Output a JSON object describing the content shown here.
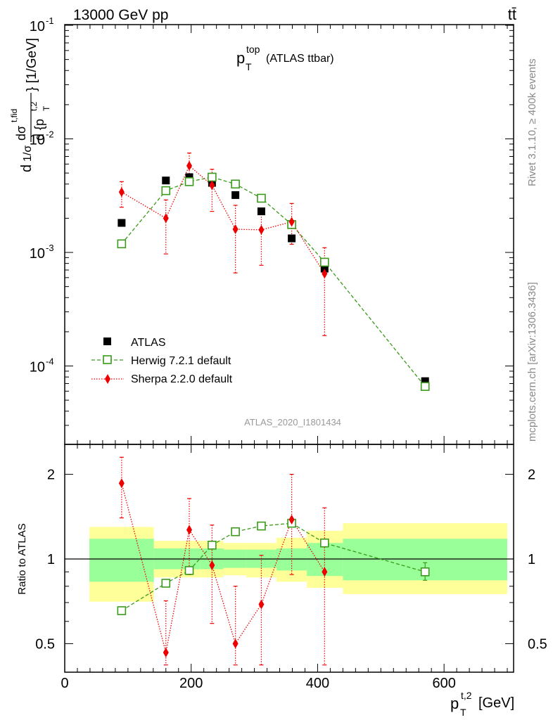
{
  "header": {
    "process": "13000 GeV pp",
    "ttbar_label": "tt̄",
    "observable_main": "p",
    "observable_sub": "T",
    "observable_sup": "top",
    "observable_tag": "(ATLAS ttbar)",
    "analysis_id": "ATLAS_2020_I1801434",
    "rivet_note": "Rivet 3.1.10, ≥ 400k events",
    "site_note": "mcplots.cern.ch [arXiv:1306.3436]"
  },
  "chart_data": [
    {
      "panel": "main",
      "type": "scatter",
      "scale": "log",
      "ylim": [
        2e-05,
        0.1
      ],
      "xlim": [
        0,
        710
      ],
      "ylabel_parts": {
        "prefix": "d",
        "sigma_frac": "1/σ",
        "d_sigma_tfid": "dσ",
        "sup": "t,fid",
        "denominator": "d {p",
        "den_sub": "T",
        "den_sup": "t,2",
        "unit": "} [1/GeV]"
      },
      "yticks": [
        {
          "base": "10",
          "exp": "-1",
          "value": 0.1
        },
        {
          "base": "10",
          "exp": "-2",
          "value": 0.01
        },
        {
          "base": "10",
          "exp": "-3",
          "value": 0.001
        },
        {
          "base": "10",
          "exp": "-4",
          "value": 0.0001
        }
      ],
      "legend": [
        {
          "name": "ATLAS",
          "color": "#000000",
          "marker": "square-filled"
        },
        {
          "name": "Herwig 7.2.1 default",
          "color": "#3a9a1a",
          "marker": "square-open",
          "line": "dashed"
        },
        {
          "name": "Sherpa 2.2.0 default",
          "color": "#ee0000",
          "marker": "diamond",
          "line": "dotted"
        }
      ],
      "series": [
        {
          "name": "ATLAS",
          "color": "#000000",
          "points": [
            {
              "x": 90,
              "y": 0.00182
            },
            {
              "x": 160,
              "y": 0.0043
            },
            {
              "x": 197,
              "y": 0.0046
            },
            {
              "x": 233,
              "y": 0.0041
            },
            {
              "x": 270,
              "y": 0.0032
            },
            {
              "x": 311,
              "y": 0.0023
            },
            {
              "x": 359,
              "y": 0.00133
            },
            {
              "x": 411,
              "y": 0.00072
            },
            {
              "x": 570,
              "y": 7.35e-05
            }
          ]
        },
        {
          "name": "Herwig 7.2.1 default",
          "color": "#3a9a1a",
          "points": [
            {
              "x": 90,
              "y": 0.00119,
              "err": 2e-05
            },
            {
              "x": 160,
              "y": 0.0035,
              "err": 5e-05
            },
            {
              "x": 197,
              "y": 0.0042,
              "err": 5e-05
            },
            {
              "x": 233,
              "y": 0.0046,
              "err": 5e-05
            },
            {
              "x": 270,
              "y": 0.004,
              "err": 5e-05
            },
            {
              "x": 311,
              "y": 0.003,
              "err": 5e-05
            },
            {
              "x": 359,
              "y": 0.00176,
              "err": 3e-05
            },
            {
              "x": 411,
              "y": 0.00082,
              "err": 2e-05
            },
            {
              "x": 570,
              "y": 6.6e-05,
              "err": 5e-06
            }
          ]
        },
        {
          "name": "Sherpa 2.2.0 default",
          "color": "#ee0000",
          "points": [
            {
              "x": 90,
              "y": 0.0034,
              "lo": 0.0025,
              "hi": 0.0042
            },
            {
              "x": 160,
              "y": 0.002,
              "lo": 0.00097,
              "hi": 0.0029
            },
            {
              "x": 197,
              "y": 0.0058,
              "lo": 0.0042,
              "hi": 0.0075
            },
            {
              "x": 233,
              "y": 0.0039,
              "lo": 0.0023,
              "hi": 0.0054
            },
            {
              "x": 270,
              "y": 0.0016,
              "lo": 0.00066,
              "hi": 0.0026
            },
            {
              "x": 311,
              "y": 0.00158,
              "lo": 0.00077,
              "hi": 0.0024
            },
            {
              "x": 359,
              "y": 0.00186,
              "lo": 0.00118,
              "hi": 0.0027
            },
            {
              "x": 411,
              "y": 0.00065,
              "lo": 0.000185,
              "hi": 0.0011
            }
          ]
        }
      ]
    },
    {
      "panel": "ratio",
      "type": "scatter",
      "scale": "log",
      "ylim": [
        0.42,
        2.35
      ],
      "xlim": [
        0,
        710
      ],
      "ylabel": "Ratio to ATLAS",
      "xlabel_parts": {
        "main": "p",
        "sub": "T",
        "sup": "t,2",
        "unit": "[GeV]"
      },
      "xticks": [
        {
          "label": "0",
          "value": 0
        },
        {
          "label": "200",
          "value": 200
        },
        {
          "label": "400",
          "value": 400
        },
        {
          "label": "600",
          "value": 600
        }
      ],
      "yticks": [
        {
          "label": "2",
          "value": 2
        },
        {
          "label": "1",
          "value": 1
        },
        {
          "label": "0.5",
          "value": 0.5
        }
      ],
      "bands": [
        {
          "x0": 39,
          "x1": 141,
          "green": [
            0.83,
            1.18
          ],
          "yellow": [
            0.705,
            1.3
          ]
        },
        {
          "x0": 141,
          "x1": 214,
          "green": [
            0.92,
            1.09
          ],
          "yellow": [
            0.86,
            1.16
          ]
        },
        {
          "x0": 214,
          "x1": 251,
          "green": [
            0.92,
            1.09
          ],
          "yellow": [
            0.86,
            1.16
          ]
        },
        {
          "x0": 251,
          "x1": 287,
          "green": [
            0.93,
            1.08
          ],
          "yellow": [
            0.875,
            1.14
          ]
        },
        {
          "x0": 287,
          "x1": 335,
          "green": [
            0.93,
            1.08
          ],
          "yellow": [
            0.86,
            1.14
          ]
        },
        {
          "x0": 335,
          "x1": 383,
          "green": [
            0.91,
            1.09
          ],
          "yellow": [
            0.83,
            1.19
          ]
        },
        {
          "x0": 383,
          "x1": 440,
          "green": [
            0.87,
            1.14
          ],
          "yellow": [
            0.79,
            1.26
          ]
        },
        {
          "x0": 440,
          "x1": 700,
          "green": [
            0.84,
            1.18
          ],
          "yellow": [
            0.75,
            1.34
          ]
        }
      ],
      "series": [
        {
          "name": "Herwig 7.2.1 default",
          "color": "#3a9a1a",
          "points": [
            {
              "x": 90,
              "y": 0.655
            },
            {
              "x": 160,
              "y": 0.82
            },
            {
              "x": 197,
              "y": 0.91
            },
            {
              "x": 233,
              "y": 1.12
            },
            {
              "x": 270,
              "y": 1.25
            },
            {
              "x": 311,
              "y": 1.31
            },
            {
              "x": 359,
              "y": 1.34
            },
            {
              "x": 411,
              "y": 1.14
            },
            {
              "x": 570,
              "y": 0.9,
              "lo": 0.84,
              "hi": 0.97
            }
          ]
        },
        {
          "name": "Sherpa 2.2.0 default",
          "color": "#ee0000",
          "points": [
            {
              "x": 90,
              "y": 1.86,
              "lo": 1.4,
              "hi": 2.3
            },
            {
              "x": 160,
              "y": 0.465,
              "lo": 0.41,
              "hi": 0.71
            },
            {
              "x": 197,
              "y": 1.27,
              "lo": 0.88,
              "hi": 1.64
            },
            {
              "x": 233,
              "y": 0.95,
              "lo": 0.59,
              "hi": 1.32
            },
            {
              "x": 270,
              "y": 0.5,
              "lo": 0.41,
              "hi": 0.8
            },
            {
              "x": 311,
              "y": 0.69,
              "lo": 0.41,
              "hi": 1.03
            },
            {
              "x": 359,
              "y": 1.38,
              "lo": 0.88,
              "hi": 2.0
            },
            {
              "x": 411,
              "y": 0.9,
              "lo": 0.41,
              "hi": 1.52
            }
          ]
        }
      ]
    }
  ]
}
